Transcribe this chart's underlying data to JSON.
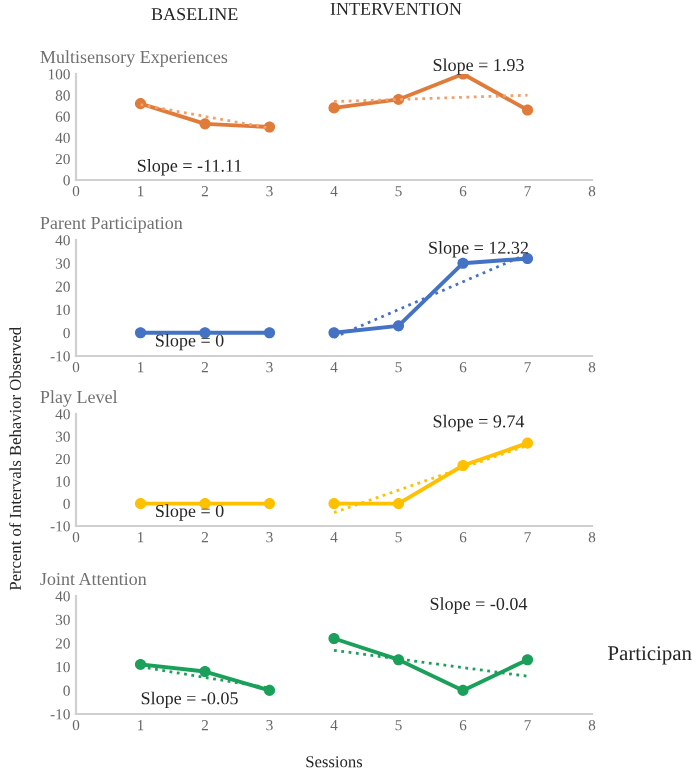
{
  "chart_data": [
    {
      "type": "line",
      "title": "Multisensory Experiences",
      "xlim": [
        0,
        8
      ],
      "xticks": [
        0,
        1,
        2,
        3,
        4,
        5,
        6,
        7,
        8
      ],
      "ylim": [
        0,
        100
      ],
      "yticks": [
        0,
        20,
        40,
        60,
        80,
        100
      ],
      "grid": false,
      "annotations": [
        "BASELINE",
        "INTERVENTION",
        "Slope = -11.11",
        "Slope = 1.93"
      ],
      "series": [
        {
          "color": "#e07b39",
          "x": [
            1,
            2,
            3
          ],
          "values": [
            72,
            53,
            50
          ],
          "marker": "circle",
          "line_style": "solid"
        },
        {
          "color": "#e07b39",
          "x": [
            4,
            5,
            6,
            7
          ],
          "values": [
            68,
            76,
            100,
            66
          ],
          "marker": "circle",
          "line_style": "solid"
        },
        {
          "color": "#f0a070",
          "x": [
            1,
            3
          ],
          "values": [
            71,
            49
          ],
          "marker": "none",
          "line_style": "dotted"
        },
        {
          "color": "#f0a070",
          "x": [
            4,
            7
          ],
          "values": [
            74,
            80
          ],
          "marker": "none",
          "line_style": "dotted"
        }
      ]
    },
    {
      "type": "line",
      "title": "Parent Participation",
      "xlim": [
        0,
        8
      ],
      "xticks": [
        0,
        1,
        2,
        3,
        4,
        5,
        6,
        7,
        8
      ],
      "ylim": [
        -10,
        40
      ],
      "yticks": [
        -10,
        0,
        10,
        20,
        30,
        40
      ],
      "grid": false,
      "annotations": [
        "Slope = 0",
        "Slope = 12.32"
      ],
      "series": [
        {
          "color": "#4472c4",
          "x": [
            1,
            2,
            3
          ],
          "values": [
            0,
            0,
            0
          ],
          "marker": "circle",
          "line_style": "solid"
        },
        {
          "color": "#4472c4",
          "x": [
            4,
            5,
            6,
            7
          ],
          "values": [
            0,
            3,
            30,
            32
          ],
          "marker": "circle",
          "line_style": "solid"
        },
        {
          "color": "#4472c4",
          "x": [
            4,
            7
          ],
          "values": [
            -2,
            34
          ],
          "marker": "none",
          "line_style": "dotted"
        }
      ]
    },
    {
      "type": "line",
      "title": "Play Level",
      "ylabel": "Percent of Intervals Behavior Observed",
      "xlim": [
        0,
        8
      ],
      "xticks": [
        0,
        1,
        2,
        3,
        4,
        5,
        6,
        7,
        8
      ],
      "ylim": [
        -10,
        40
      ],
      "yticks": [
        -10,
        0,
        10,
        20,
        30,
        40
      ],
      "grid": false,
      "annotations": [
        "Slope = 0",
        "Slope = 9.74"
      ],
      "series": [
        {
          "color": "#ffc000",
          "x": [
            1,
            2,
            3
          ],
          "values": [
            0,
            0,
            0
          ],
          "marker": "circle",
          "line_style": "solid"
        },
        {
          "color": "#ffc000",
          "x": [
            4,
            5,
            6,
            7
          ],
          "values": [
            0,
            0,
            17,
            27
          ],
          "marker": "circle",
          "line_style": "solid"
        },
        {
          "color": "#ffc000",
          "x": [
            4,
            7
          ],
          "values": [
            -4,
            26
          ],
          "marker": "none",
          "line_style": "dotted"
        }
      ]
    },
    {
      "type": "line",
      "title": "Joint Attention",
      "xlabel": "Sessions",
      "xlim": [
        0,
        8
      ],
      "xticks": [
        0,
        1,
        2,
        3,
        4,
        5,
        6,
        7,
        8
      ],
      "ylim": [
        -10,
        40
      ],
      "yticks": [
        -10,
        0,
        10,
        20,
        30,
        40
      ],
      "grid": false,
      "annotations": [
        "Slope = -0.05",
        "Slope = -0.04",
        "Participan"
      ],
      "series": [
        {
          "color": "#1aa05a",
          "x": [
            1,
            2,
            3
          ],
          "values": [
            11,
            8,
            0
          ],
          "marker": "circle",
          "line_style": "solid"
        },
        {
          "color": "#1aa05a",
          "x": [
            4,
            5,
            6,
            7
          ],
          "values": [
            22,
            13,
            0,
            13
          ],
          "marker": "circle",
          "line_style": "solid"
        },
        {
          "color": "#1aa05a",
          "x": [
            1,
            3
          ],
          "values": [
            10,
            1
          ],
          "marker": "none",
          "line_style": "dotted"
        },
        {
          "color": "#1aa05a",
          "x": [
            4,
            7
          ],
          "values": [
            17,
            6
          ],
          "marker": "none",
          "line_style": "dotted"
        }
      ]
    }
  ]
}
